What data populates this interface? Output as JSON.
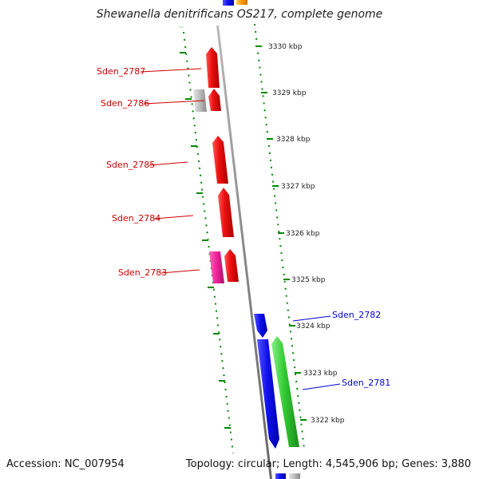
{
  "title": "Shewanella denitrificans OS217, complete genome",
  "footer": {
    "accession": "Accession: NC_007954",
    "summary": "Topology: circular; Length: 4,545,906 bp; Genes: 3,880"
  },
  "colors": {
    "backbone": "#888888",
    "tick": "#008800",
    "red": "#ee1111",
    "grey": "#bbbbbb",
    "pink": "#ee2299",
    "blue": "#1111ee",
    "green": "#33cc33",
    "orange": "#ff9900",
    "left_label": "#cc0000",
    "right_label": "#0000cc"
  },
  "scale_labels": [
    "3330 kbp",
    "3329 kbp",
    "3328 kbp",
    "3327 kbp",
    "3326 kbp",
    "3325 kbp",
    "3324 kbp",
    "3323 kbp",
    "3322 kbp"
  ],
  "genes_left": [
    {
      "id": "Sden_2787"
    },
    {
      "id": "Sden_2786"
    },
    {
      "id": "Sden_2785"
    },
    {
      "id": "Sden_2784"
    },
    {
      "id": "Sden_2783"
    }
  ],
  "genes_right": [
    {
      "id": "Sden_2782"
    },
    {
      "id": "Sden_2781"
    }
  ]
}
